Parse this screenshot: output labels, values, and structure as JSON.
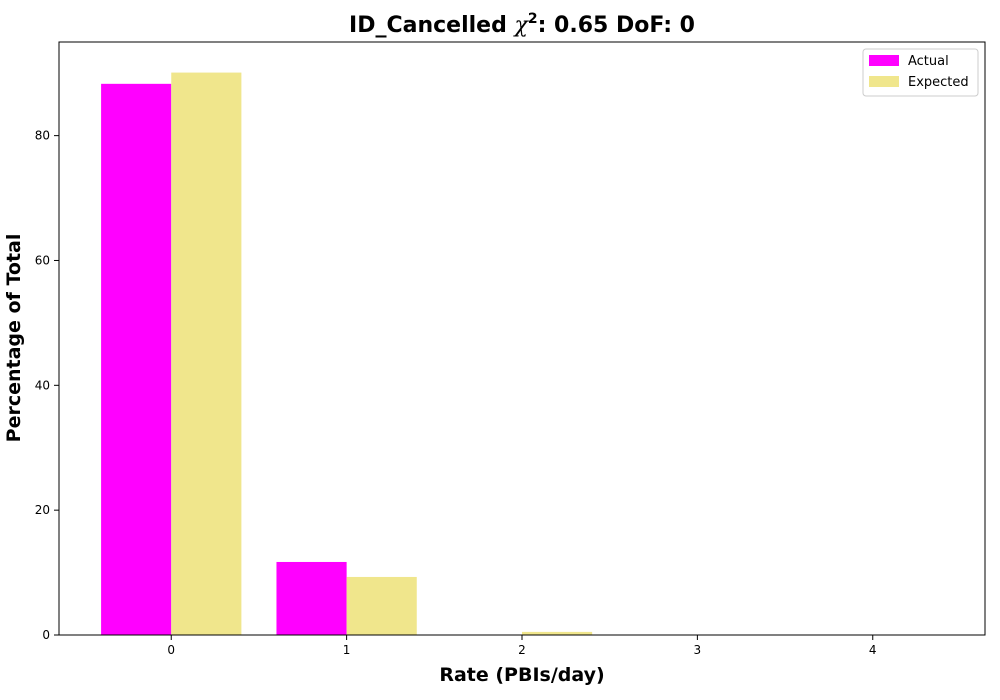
{
  "chart_data": {
    "type": "bar",
    "title_prefix": "ID_Cancelled ",
    "title_chi": "χ",
    "title_sup": "2",
    "title_suffix": ": 0.65 DoF: 0",
    "xlabel": "Rate (PBIs/day)",
    "ylabel": "Percentage of Total",
    "categories": [
      "0",
      "1",
      "2",
      "3",
      "4"
    ],
    "x": [
      0,
      1,
      2,
      3,
      4
    ],
    "xlim": [
      -0.64,
      4.64
    ],
    "ylim": [
      0,
      95
    ],
    "yticks": [
      0,
      20,
      40,
      60,
      80
    ],
    "grid": false,
    "legend_position": "top-right",
    "series": [
      {
        "name": "Actual",
        "color": "#ff00ff",
        "values": [
          88.3,
          11.7,
          0,
          0,
          0
        ]
      },
      {
        "name": "Expected",
        "color": "#f0e68c",
        "values": [
          90.1,
          9.3,
          0.5,
          0.02,
          0
        ]
      }
    ]
  }
}
